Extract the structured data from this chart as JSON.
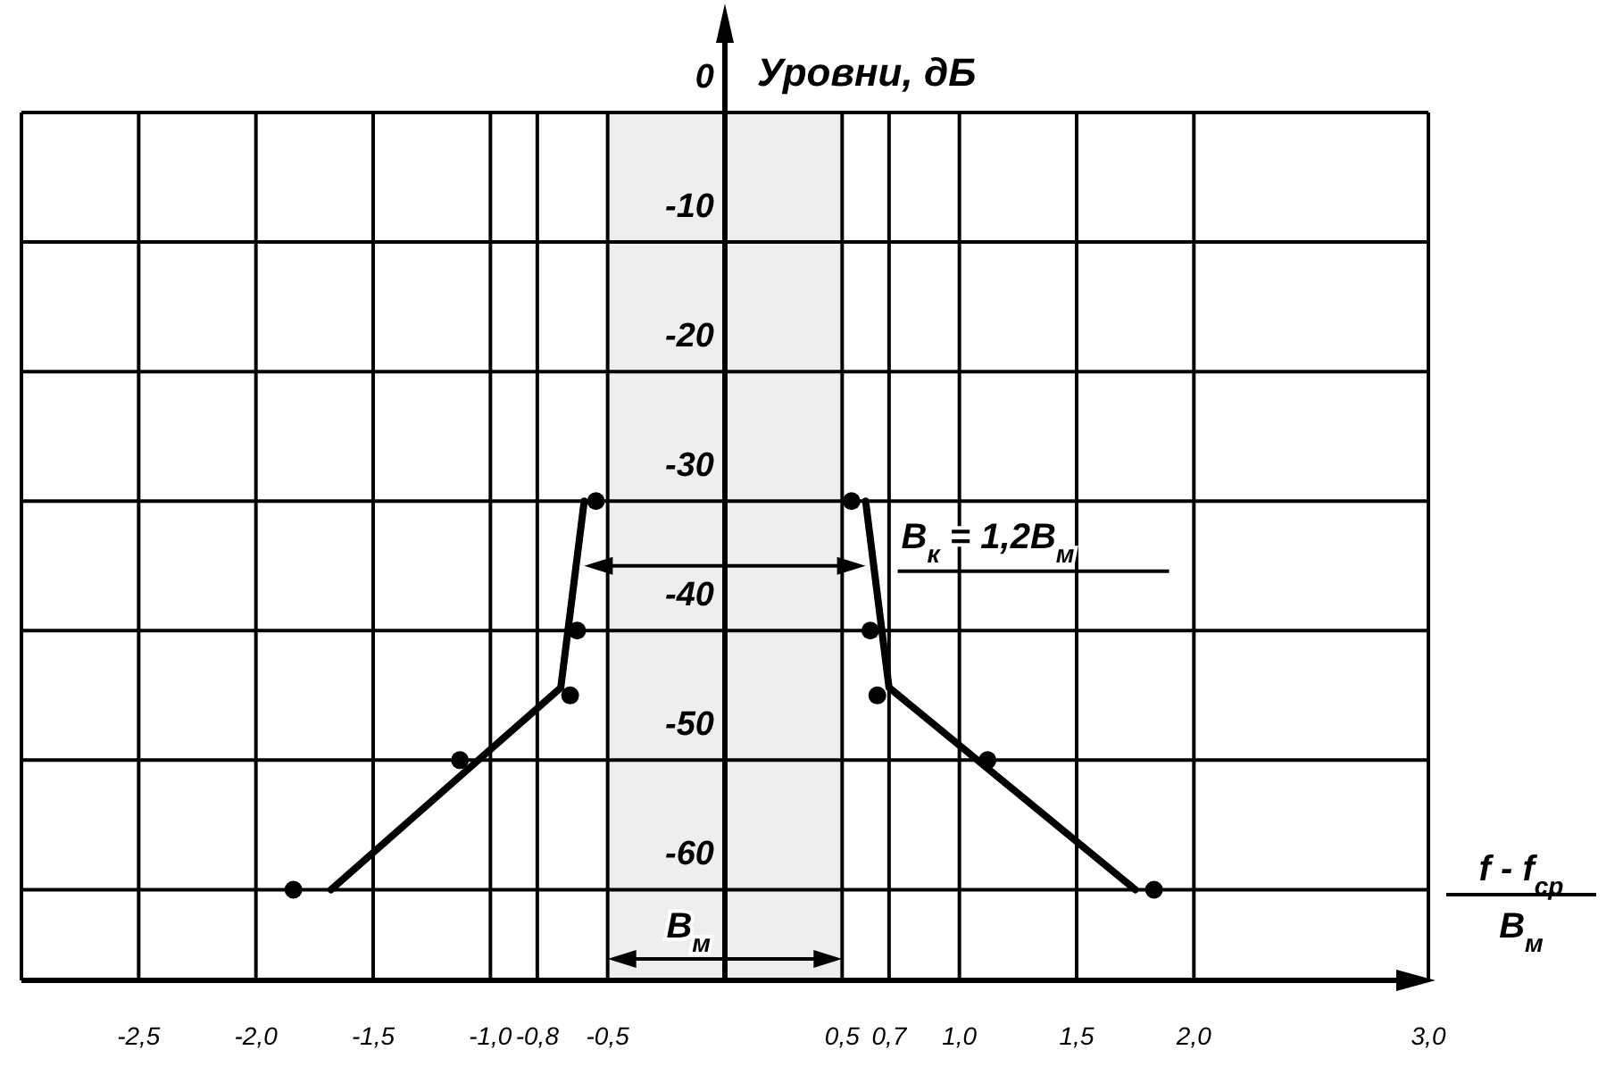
{
  "chart_data": {
    "type": "scatter",
    "ylabel": "Уровни, дБ",
    "xlabel": "f - f$_{ср}$\nВ$_{м}$",
    "xlim": [
      -3.0,
      3.0
    ],
    "ylim": [
      -67,
      0
    ],
    "xticks": [
      {
        "value": -2.5,
        "label": "-2,5"
      },
      {
        "value": -2.0,
        "label": "-2,0"
      },
      {
        "value": -1.5,
        "label": "-1,5"
      },
      {
        "value": -1.0,
        "label": "-1,0"
      },
      {
        "value": -0.8,
        "label": "-0,8"
      },
      {
        "value": -0.5,
        "label": "-0,5"
      },
      {
        "value": 0.5,
        "label": "0,5"
      },
      {
        "value": 0.7,
        "label": "0,7"
      },
      {
        "value": 1.0,
        "label": "1,0"
      },
      {
        "value": 1.5,
        "label": "1,5"
      },
      {
        "value": 2.0,
        "label": "2,0"
      },
      {
        "value": 3.0,
        "label": "3,0"
      }
    ],
    "bands": [
      {
        "axis": "x",
        "from": -0.5,
        "to": 0.5,
        "label": "В$_{м}$"
      }
    ],
    "yticks": [
      0,
      -10,
      -20,
      -30,
      -40,
      -50,
      -60
    ],
    "grid": true,
    "marker": "circle",
    "series": [
      {
        "type": "line",
        "marker": "none",
        "color": "#000000",
        "x": [
          -1.68,
          -0.7,
          -0.6
        ],
        "values": [
          -60,
          -44.4,
          -30
        ]
      },
      {
        "type": "line",
        "marker": "none",
        "color": "#000000",
        "x": [
          0.6,
          0.7,
          1.75
        ],
        "values": [
          -30,
          -44.4,
          -60
        ]
      },
      {
        "type": "scatter",
        "color": "#000000",
        "x": [
          -1.84,
          -1.13,
          -0.66,
          -0.63,
          -0.55,
          0.54,
          0.62,
          0.65,
          1.12,
          1.83
        ],
        "values": [
          -60,
          -50,
          -45,
          -40,
          -30,
          -30,
          -40,
          -45,
          -50,
          -60
        ]
      }
    ],
    "annotations": [
      {
        "text": "В$_{к}$ = 1,2В$_{м}$",
        "x": 0.6,
        "y": -35
      }
    ]
  }
}
